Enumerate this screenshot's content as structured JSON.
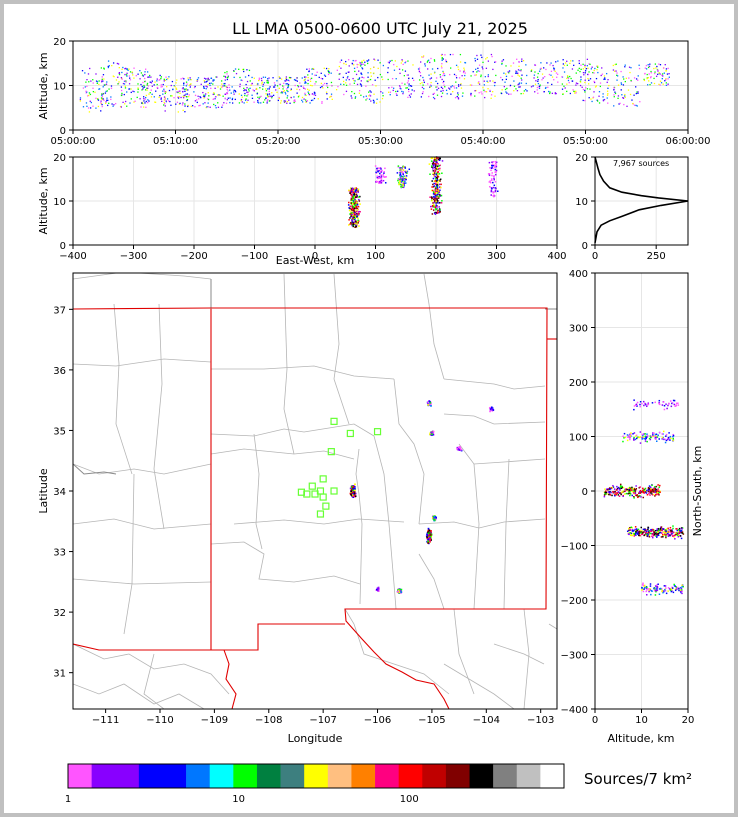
{
  "chart_data": [
    {
      "panel": "altitude-time",
      "type": "scatter",
      "title": "LL LMA 0500-0600 UTC July 21, 2025",
      "ylabel": "Altitude, km",
      "x_ticks": [
        "05:00:00",
        "05:10:00",
        "05:20:00",
        "05:30:00",
        "05:40:00",
        "05:50:00",
        "06:00:00"
      ],
      "xlim": [
        "05:00:00",
        "06:00:00"
      ],
      "ylim": [
        0,
        20
      ],
      "y_ticks": [
        0,
        10,
        20
      ],
      "grid": true,
      "sources": [
        {
          "minute": 2,
          "altitude": [
            4,
            14
          ]
        },
        {
          "minute": 4,
          "altitude": [
            5,
            16
          ]
        },
        {
          "minute": 6,
          "altitude": [
            5,
            14
          ]
        },
        {
          "minute": 8,
          "altitude": [
            6,
            13
          ]
        },
        {
          "minute": 10,
          "altitude": [
            4,
            12
          ]
        },
        {
          "minute": 12,
          "altitude": [
            5,
            12
          ]
        },
        {
          "minute": 14,
          "altitude": [
            5,
            12
          ]
        },
        {
          "minute": 16,
          "altitude": [
            6,
            14
          ]
        },
        {
          "minute": 18,
          "altitude": [
            6,
            12
          ]
        },
        {
          "minute": 20,
          "altitude": [
            6,
            12
          ]
        },
        {
          "minute": 22,
          "altitude": [
            6,
            12
          ]
        },
        {
          "minute": 24,
          "altitude": [
            6,
            14
          ]
        },
        {
          "minute": 27,
          "altitude": [
            7,
            16
          ]
        },
        {
          "minute": 29,
          "altitude": [
            6,
            16
          ]
        },
        {
          "minute": 32,
          "altitude": [
            7,
            16
          ]
        },
        {
          "minute": 35,
          "altitude": [
            7,
            17
          ]
        },
        {
          "minute": 37,
          "altitude": [
            7,
            17
          ]
        },
        {
          "minute": 40,
          "altitude": [
            7,
            17
          ]
        },
        {
          "minute": 43,
          "altitude": [
            8,
            16
          ]
        },
        {
          "minute": 46,
          "altitude": [
            8,
            16
          ]
        },
        {
          "minute": 49,
          "altitude": [
            8,
            16
          ]
        },
        {
          "minute": 51,
          "altitude": [
            6,
            15
          ]
        },
        {
          "minute": 54,
          "altitude": [
            5,
            15
          ]
        },
        {
          "minute": 57,
          "altitude": [
            10,
            15
          ]
        }
      ]
    },
    {
      "panel": "altitude-east-west",
      "type": "scatter",
      "xlabel": "East-West, km",
      "ylabel": "Altitude, km",
      "xlim": [
        -400,
        400
      ],
      "x_ticks": [
        -400,
        -300,
        -200,
        -100,
        0,
        100,
        200,
        300,
        400
      ],
      "ylim": [
        0,
        20
      ],
      "y_ticks": [
        0,
        10,
        20
      ],
      "grid": true,
      "clusters": [
        {
          "x": 65,
          "altitude": [
            4,
            13
          ],
          "intensity": "high"
        },
        {
          "x": 108,
          "altitude": [
            14,
            18
          ],
          "intensity": "low"
        },
        {
          "x": 145,
          "altitude": [
            13,
            18
          ],
          "intensity": "medium"
        },
        {
          "x": 200,
          "altitude": [
            7,
            20
          ],
          "intensity": "high"
        },
        {
          "x": 295,
          "altitude": [
            11,
            19
          ],
          "intensity": "low"
        }
      ]
    },
    {
      "panel": "altitude-histogram",
      "type": "line",
      "annotation": "7,967 sources",
      "xlim": [
        0,
        380
      ],
      "x_ticks": [
        0,
        250
      ],
      "ylim": [
        0,
        20
      ],
      "y_ticks": [
        0,
        10,
        20
      ],
      "grid": true,
      "x": [
        0,
        8,
        25,
        60,
        110,
        180,
        270,
        380,
        260,
        190,
        110,
        60,
        35,
        20,
        12,
        5,
        0
      ],
      "y": [
        0.5,
        3,
        4.5,
        5.5,
        6.5,
        8,
        9,
        10,
        10.7,
        11.2,
        12,
        13,
        14.5,
        16,
        17.5,
        19,
        20
      ]
    },
    {
      "panel": "plan-view-map",
      "type": "scatter",
      "xlabel": "Longitude",
      "ylabel": "Latitude",
      "xlim": [
        -111.6,
        -102.7
      ],
      "x_ticks": [
        -111,
        -110,
        -109,
        -108,
        -107,
        -106,
        -105,
        -104,
        -103
      ],
      "ylim": [
        30.4,
        37.6
      ],
      "y_ticks": [
        31,
        32,
        33,
        34,
        35,
        36,
        37
      ],
      "stations": [
        [
          -106.8,
          35.15
        ],
        [
          -106.5,
          34.95
        ],
        [
          -106.0,
          34.98
        ],
        [
          -106.85,
          34.65
        ],
        [
          -107.0,
          34.2
        ],
        [
          -107.2,
          34.08
        ],
        [
          -107.05,
          34.0
        ],
        [
          -106.8,
          34.0
        ],
        [
          -107.3,
          33.95
        ],
        [
          -107.15,
          33.95
        ],
        [
          -107.4,
          33.98
        ],
        [
          -107.0,
          33.9
        ],
        [
          -106.95,
          33.75
        ],
        [
          -107.05,
          33.62
        ]
      ],
      "clusters": [
        {
          "lon": -106.45,
          "lat": 34.0,
          "intensity": "high"
        },
        {
          "lon": -105.05,
          "lat": 33.25,
          "intensity": "high"
        },
        {
          "lon": -104.95,
          "lat": 33.55,
          "intensity": "medium"
        },
        {
          "lon": -105.0,
          "lat": 34.95,
          "intensity": "medium"
        },
        {
          "lon": -105.05,
          "lat": 35.45,
          "intensity": "medium"
        },
        {
          "lon": -104.5,
          "lat": 34.7,
          "intensity": "low"
        },
        {
          "lon": -103.9,
          "lat": 35.35,
          "intensity": "low"
        },
        {
          "lon": -105.6,
          "lat": 32.35,
          "intensity": "medium"
        },
        {
          "lon": -106.0,
          "lat": 32.38,
          "intensity": "low"
        }
      ]
    },
    {
      "panel": "north-south-altitude",
      "type": "scatter",
      "xlabel": "Altitude, km",
      "ylabel": "North-South, km",
      "xlim": [
        0,
        20
      ],
      "x_ticks": [
        0,
        10,
        20
      ],
      "ylim": [
        -400,
        400
      ],
      "y_ticks": [
        -400,
        -300,
        -200,
        -100,
        0,
        100,
        200,
        300,
        400
      ],
      "grid": true,
      "clusters": [
        {
          "y": 0,
          "altitude": [
            2,
            14
          ],
          "intensity": "high"
        },
        {
          "y": -75,
          "altitude": [
            7,
            19
          ],
          "intensity": "high"
        },
        {
          "y": 100,
          "altitude": [
            6,
            17
          ],
          "intensity": "medium"
        },
        {
          "y": 160,
          "altitude": [
            8,
            18
          ],
          "intensity": "low"
        },
        {
          "y": -180,
          "altitude": [
            10,
            19
          ],
          "intensity": "medium"
        }
      ]
    }
  ],
  "colorbar": {
    "label": "Sources/7 km²",
    "tick_labels": [
      "1",
      "10",
      "100"
    ],
    "colors": [
      "#ff55ff",
      "#8800ff",
      "#8800ff",
      "#0000ff",
      "#0000ff",
      "#0077ff",
      "#00ffff",
      "#00ff00",
      "#008040",
      "#3d7f7f",
      "#ffff00",
      "#ffbf80",
      "#ff8000",
      "#ff0080",
      "#ff0000",
      "#c00000",
      "#800000",
      "#000000",
      "#808080",
      "#c0c0c0",
      "#ffffff"
    ]
  }
}
